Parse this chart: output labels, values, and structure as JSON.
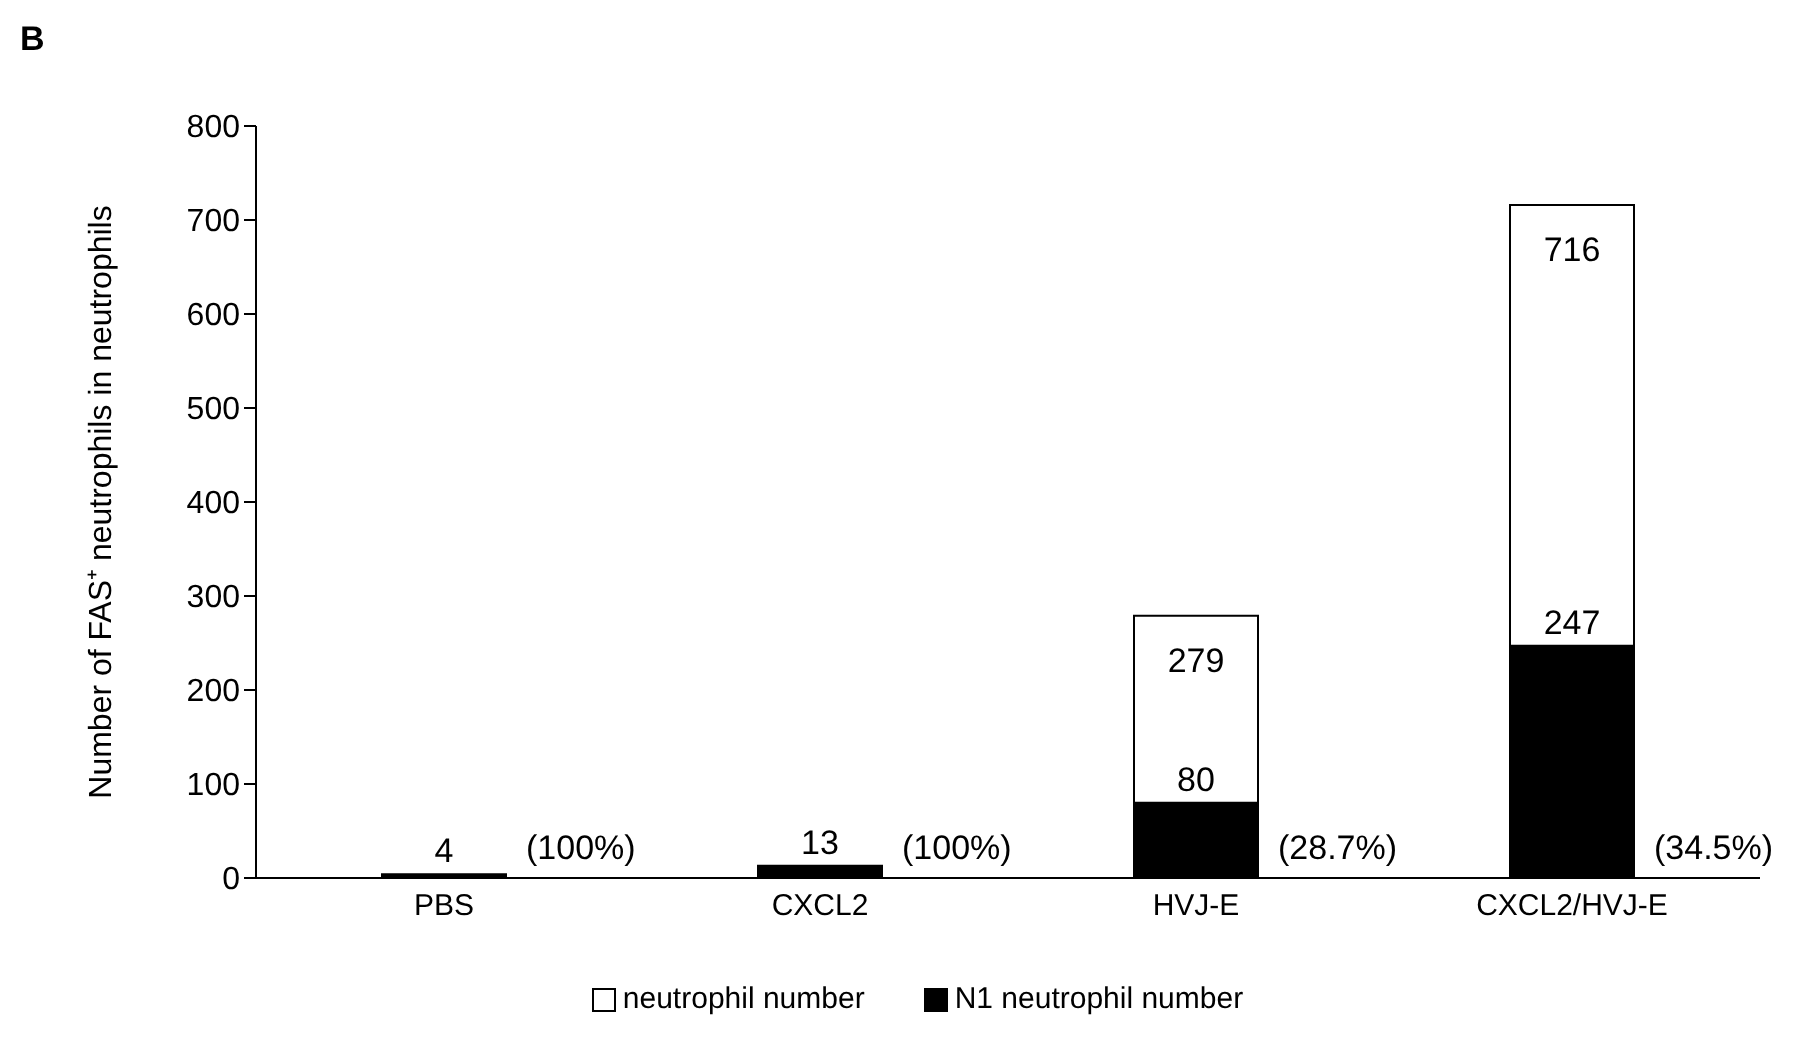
{
  "chart_data": {
    "type": "bar",
    "ylabel": "Number of FAS⁺ neutrophils  in neutrophils",
    "categories": [
      "PBS",
      "CXCL2",
      "HVJ-E",
      "CXCL2/HVJ-E"
    ],
    "stacked": true,
    "series": [
      {
        "name": "N1 neutrophil number",
        "color": "#000000",
        "values": [
          4,
          13,
          80,
          247
        ],
        "value_labels": [
          "4",
          "13",
          "80",
          "247"
        ]
      },
      {
        "name": "neutrophil number",
        "color": "#ffffff",
        "values": [
          0,
          0,
          199,
          469
        ]
      }
    ],
    "totals": [
      null,
      null,
      "279",
      "716"
    ],
    "ylim": [
      0,
      800
    ],
    "yticks": [
      0,
      100,
      200,
      300,
      400,
      500,
      600,
      700,
      800
    ],
    "grid": false,
    "legend": "bottom",
    "annotations": [
      "B",
      "(100%)",
      "(100%)",
      "(28.7%)",
      "(34.5%)"
    ]
  }
}
